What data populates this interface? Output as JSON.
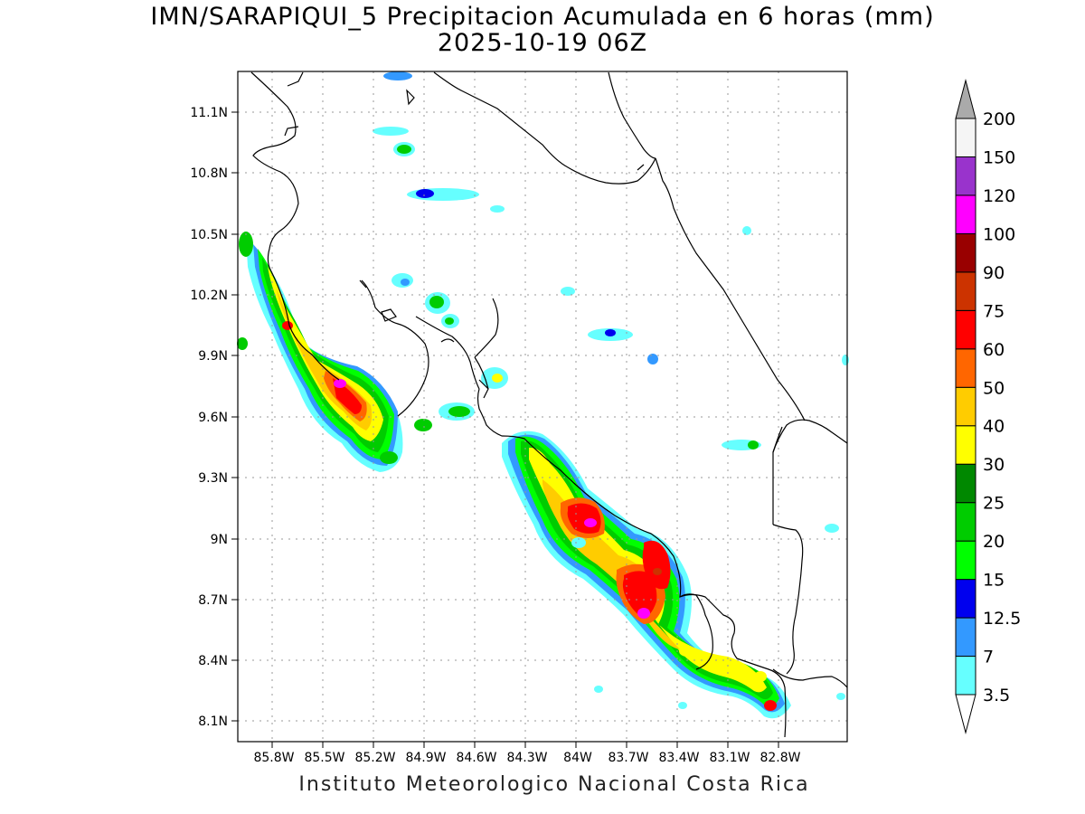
{
  "title": "IMN/SARAPIQUI_5 Precipitacion Acumulada en 6 horas (mm)",
  "subtitle": "2025-10-19 06Z",
  "footer": "Instituto Meteorologico Nacional Costa Rica",
  "map": {
    "lat_labels": [
      "11.1N",
      "10.8N",
      "10.5N",
      "10.2N",
      "9.9N",
      "9.6N",
      "9.3N",
      "9N",
      "8.7N",
      "8.4N",
      "8.1N"
    ],
    "lon_labels": [
      "85.8W",
      "85.5W",
      "85.2W",
      "84.9W",
      "84.6W",
      "84.3W",
      "84W",
      "83.7W",
      "83.4W",
      "83.1W",
      "82.8W"
    ]
  },
  "colorbar": {
    "levels": [
      "3.5",
      "7",
      "12.5",
      "15",
      "20",
      "25",
      "30",
      "40",
      "50",
      "60",
      "75",
      "90",
      "100",
      "120",
      "150",
      "200"
    ],
    "colors": [
      "#66ffff",
      "#3399ff",
      "#0000ee",
      "#00ff00",
      "#00cc00",
      "#008800",
      "#ffff00",
      "#ffcc00",
      "#ff6600",
      "#ff0000",
      "#cc3300",
      "#990000",
      "#ff00ff",
      "#9933cc",
      "#f5f5f5",
      "#aaaaaa"
    ]
  }
}
